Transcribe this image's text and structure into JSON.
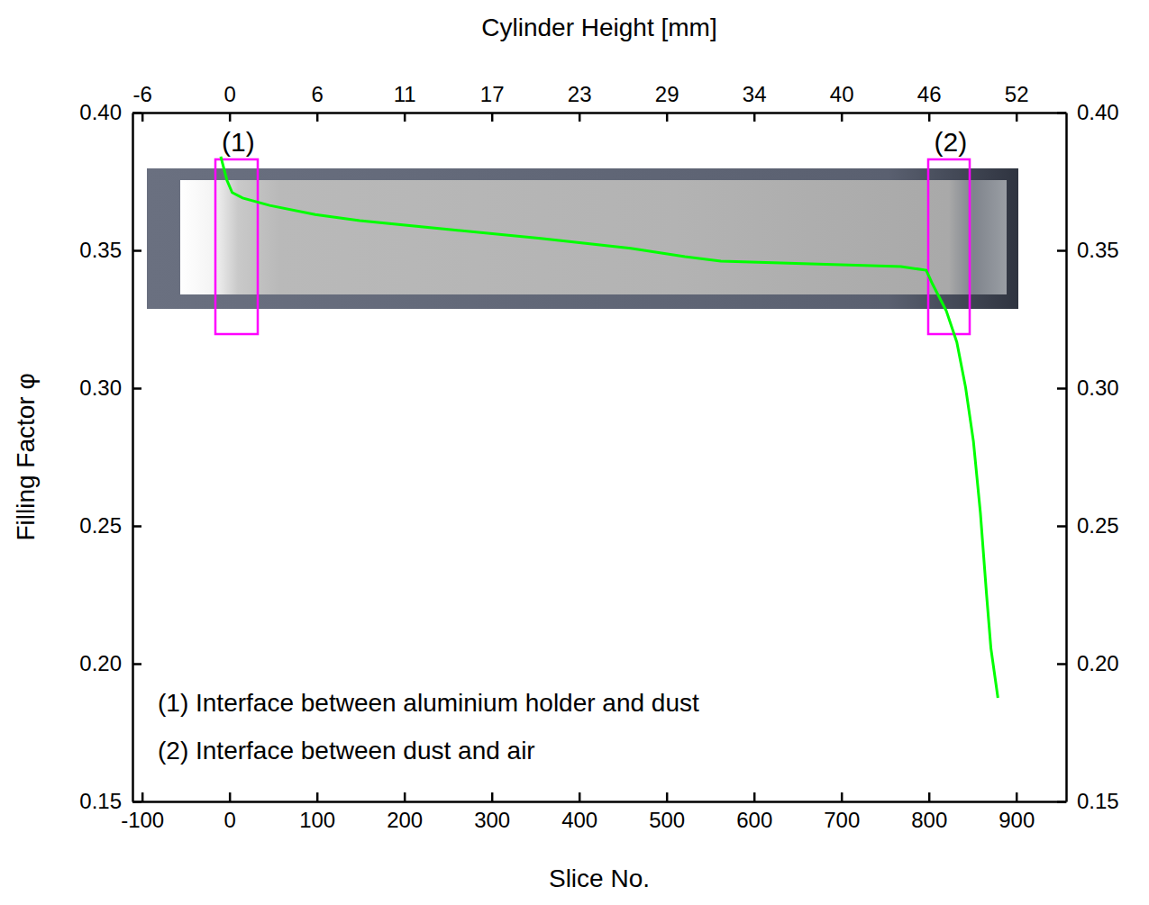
{
  "chart_data": {
    "type": "line",
    "xlabel": "Slice No.",
    "ylabel": "Filling Factor φ",
    "x2label": "Cylinder Height [mm]",
    "color": "#00ff00",
    "x": [
      -10,
      -3,
      3,
      15,
      46,
      98,
      149,
      253,
      356,
      459,
      521,
      562,
      665,
      768,
      797,
      804,
      820,
      832,
      842,
      851,
      859,
      866,
      871,
      879
    ],
    "values": [
      0.384,
      0.3755,
      0.371,
      0.369,
      0.3663,
      0.363,
      0.3608,
      0.3575,
      0.3543,
      0.3507,
      0.3477,
      0.3461,
      0.3451,
      0.3441,
      0.3428,
      0.3379,
      0.328,
      0.3167,
      0.3003,
      0.2807,
      0.2546,
      0.2251,
      0.2056,
      0.1876
    ],
    "xlim": [
      -111,
      957
    ],
    "xticks": [
      -100,
      0,
      100,
      200,
      300,
      400,
      500,
      600,
      700,
      800,
      900
    ],
    "x2lim": [
      -111,
      957
    ],
    "x2ticks": [
      {
        "value": -100,
        "label": "-6"
      },
      {
        "value": 0,
        "label": "0"
      },
      {
        "value": 100,
        "label": "6"
      },
      {
        "value": 200,
        "label": "11"
      },
      {
        "value": 300,
        "label": "17"
      },
      {
        "value": 400,
        "label": "23"
      },
      {
        "value": 500,
        "label": "29"
      },
      {
        "value": 600,
        "label": "34"
      },
      {
        "value": 700,
        "label": "40"
      },
      {
        "value": 800,
        "label": "46"
      },
      {
        "value": 900,
        "label": "52"
      }
    ],
    "ylim": [
      0.15,
      0.4
    ],
    "yticks": [
      0.15,
      {
        "value": 0.2,
        "label": "0.20"
      },
      0.25,
      {
        "value": 0.3,
        "label": "0.30"
      },
      0.35,
      {
        "value": 0.4,
        "label": "0.40"
      }
    ],
    "y2lim": [
      0.15,
      0.4
    ],
    "y2ticks": [
      0.15,
      {
        "value": 0.2,
        "label": "0.20"
      },
      0.25,
      {
        "value": 0.3,
        "label": "0.30"
      },
      0.35,
      {
        "value": 0.4,
        "label": "0.40"
      }
    ],
    "annotations": [
      {
        "text": "(1)",
        "x": 10,
        "y": 0.386
      },
      {
        "text": "(2)",
        "x": 825,
        "y": 0.386
      }
    ],
    "notes": [
      "(1) Interface between aluminium holder and dust",
      "(2) Interface between dust and air"
    ]
  }
}
